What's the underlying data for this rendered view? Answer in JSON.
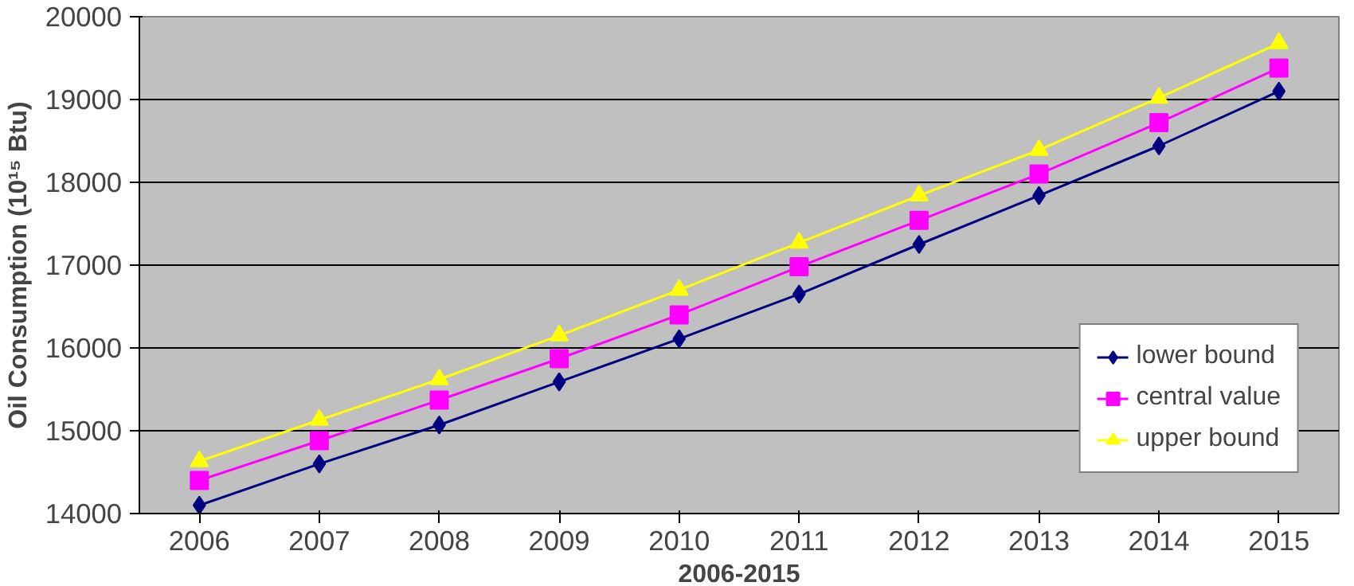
{
  "chart_data": {
    "type": "line",
    "xlabel": "2006-2015",
    "ylabel": "Oil Consumption (10¹⁵ Btu)",
    "categories": [
      "2006",
      "2007",
      "2008",
      "2009",
      "2010",
      "2011",
      "2012",
      "2013",
      "2014",
      "2015"
    ],
    "series": [
      {
        "name": "lower bound",
        "color": "#000080",
        "marker": "diamond",
        "values": [
          14100,
          14600,
          15070,
          15590,
          16110,
          16650,
          17250,
          17840,
          18440,
          19100
        ]
      },
      {
        "name": "central value",
        "color": "#ff00ff",
        "marker": "square",
        "values": [
          14400,
          14880,
          15370,
          15870,
          16400,
          16980,
          17540,
          18100,
          18720,
          19380
        ]
      },
      {
        "name": "upper bound",
        "color": "#ffff00",
        "marker": "triangle",
        "values": [
          14630,
          15130,
          15620,
          16150,
          16700,
          17270,
          17840,
          18390,
          19020,
          19680
        ]
      }
    ],
    "ylim": [
      14000,
      20000
    ],
    "yticks": [
      14000,
      15000,
      16000,
      17000,
      18000,
      19000,
      20000
    ],
    "grid": "y",
    "legend": "bottom right",
    "line_style": "solid"
  }
}
